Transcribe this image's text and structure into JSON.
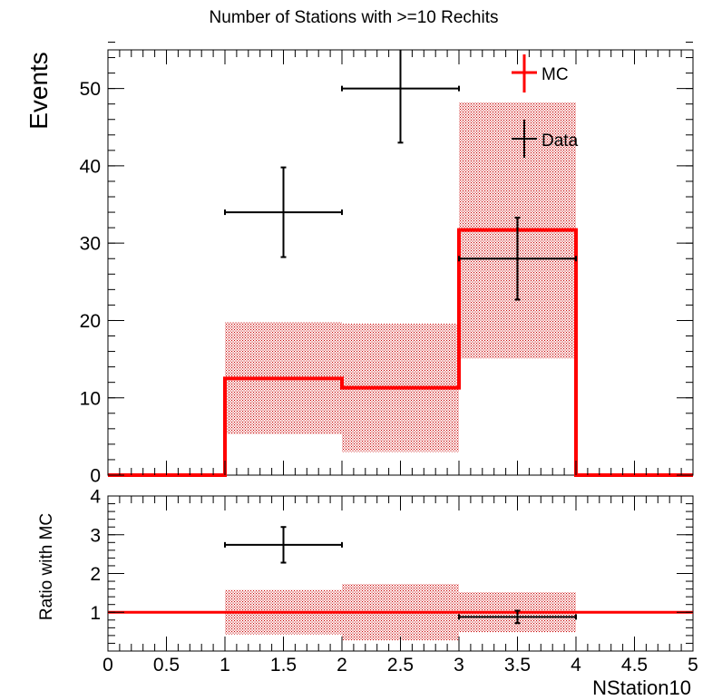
{
  "chart_data": [
    {
      "type": "step",
      "panel": "main",
      "title": "Number of Stations with >=10 Rechits",
      "ylabel": "Events",
      "xlim": [
        0,
        5
      ],
      "ylim": [
        0,
        55
      ],
      "y_ticks": [
        "0",
        "10",
        "20",
        "30",
        "40",
        "50"
      ],
      "bin_edges": [
        0,
        1,
        2,
        3,
        4,
        5
      ],
      "legend": {
        "position": "top-right",
        "entries": [
          "MC",
          "Data"
        ]
      },
      "mc": {
        "name": "MC",
        "color": "#ff0000",
        "values": [
          0,
          12.5,
          11.3,
          31.7,
          0
        ],
        "band_low": [
          0,
          5.3,
          3.0,
          15.1,
          0
        ],
        "band_high": [
          0,
          19.8,
          19.6,
          48.2,
          0
        ]
      },
      "data": {
        "name": "Data",
        "color": "#000000",
        "points": [
          {
            "x": 1.5,
            "y": 34,
            "xerr": 0.5,
            "ylo": 28.2,
            "yhi": 39.8
          },
          {
            "x": 2.5,
            "y": 50,
            "xerr": 0.5,
            "ylo": 43.0,
            "yhi": 57.0
          },
          {
            "x": 3.5,
            "y": 28,
            "xerr": 0.5,
            "ylo": 22.7,
            "yhi": 33.3
          }
        ]
      }
    },
    {
      "type": "step",
      "panel": "ratio",
      "ylabel": "Ratio with MC",
      "xlabel": "NStation10",
      "xlim": [
        0,
        5
      ],
      "ylim": [
        0,
        4
      ],
      "x_ticks": [
        "0",
        "0.5",
        "1",
        "1.5",
        "2",
        "2.5",
        "3",
        "3.5",
        "4",
        "4.5",
        "5"
      ],
      "y_ticks": [
        "1",
        "2",
        "3",
        "4"
      ],
      "reference_line": 1,
      "mc_band": {
        "color": "#ff0000",
        "bins": [
          {
            "x0": 1,
            "x1": 2,
            "lo": 0.43,
            "hi": 1.58
          },
          {
            "x0": 2,
            "x1": 3,
            "lo": 0.27,
            "hi": 1.73
          },
          {
            "x0": 3,
            "x1": 4,
            "lo": 0.48,
            "hi": 1.52
          }
        ]
      },
      "data": {
        "color": "#000000",
        "points": [
          {
            "x": 1.5,
            "y": 2.74,
            "xerr": 0.5,
            "ylo": 2.28,
            "yhi": 3.2
          },
          {
            "x": 3.5,
            "y": 0.88,
            "xerr": 0.5,
            "ylo": 0.72,
            "yhi": 1.04
          }
        ]
      }
    }
  ]
}
